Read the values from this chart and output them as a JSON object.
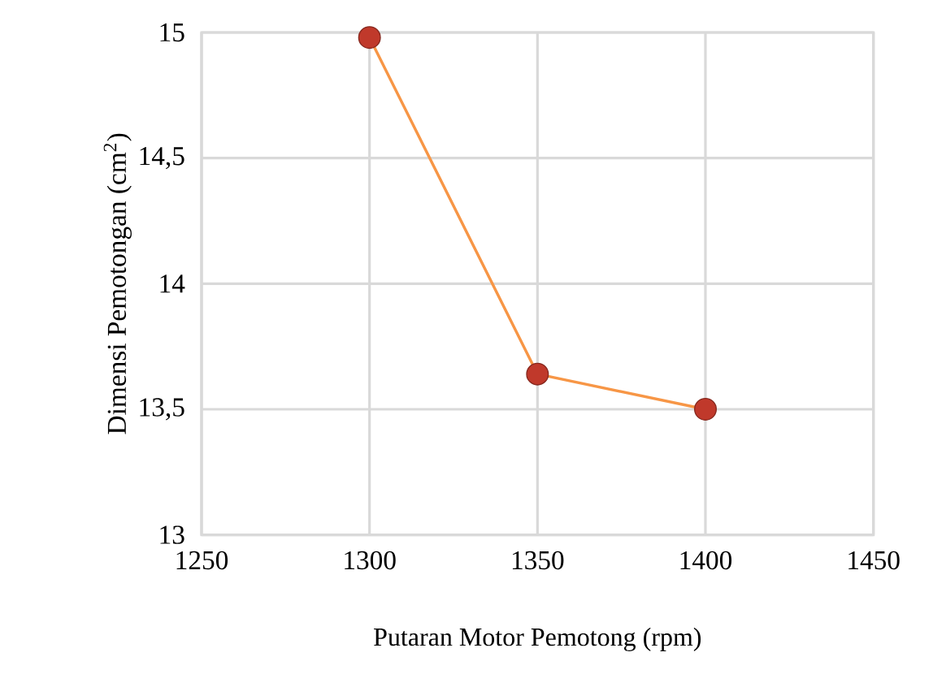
{
  "chart_data": {
    "type": "line",
    "xlabel": "Putaran Motor Pemotong (rpm)",
    "ylabel": "Dimensi Pemotongan (cm$^{2}$)",
    "x": [
      1300,
      1350,
      1400
    ],
    "series": [
      {
        "color": "#f79646",
        "values": [
          14.98,
          13.64,
          13.5
        ]
      }
    ],
    "marker": "circle",
    "xlim": [
      1250,
      1450
    ],
    "xticks": [
      1250,
      1300,
      1350,
      1400,
      1450
    ],
    "ylim": [
      13,
      15
    ],
    "yticks": [
      13,
      {
        "value": 13.5,
        "label": "13,5"
      },
      14,
      {
        "value": 14.5,
        "label": "14,5"
      },
      15
    ],
    "grid": true
  }
}
